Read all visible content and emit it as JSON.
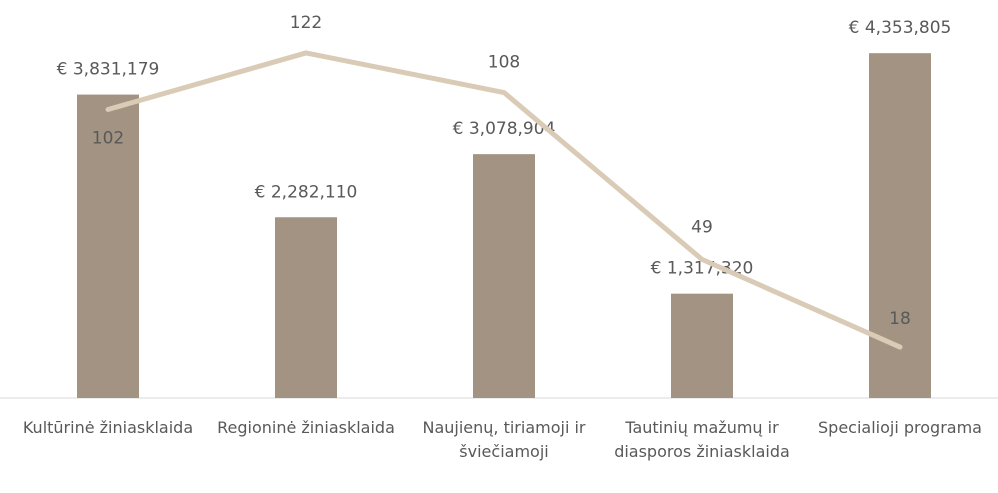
{
  "chart_data": {
    "type": "combo",
    "categories": [
      "Kultūrinė žiniasklaida",
      "Regioninė žiniasklaida",
      "Naujienų, tiriamoji ir šviečiamoji",
      "Tautinių mažumų ir diasporos žiniasklaida",
      "Specialioji programa"
    ],
    "ylim": [
      0,
      5000000
    ],
    "y2lim": [
      0,
      140
    ],
    "series": [
      {
        "type": "bar",
        "color": "#a29382",
        "values": [
          3831179,
          2282110,
          3078904,
          1317320,
          4353805
        ],
        "value_labels": [
          "€ 3,831,179",
          "€ 2,282,110",
          "€ 3,078,904",
          "€ 1,317,320",
          "€ 4,353,805"
        ]
      },
      {
        "type": "line",
        "axis": "y2",
        "color": "#d9cbb5",
        "values": [
          102,
          122,
          108,
          49,
          18
        ]
      }
    ]
  }
}
